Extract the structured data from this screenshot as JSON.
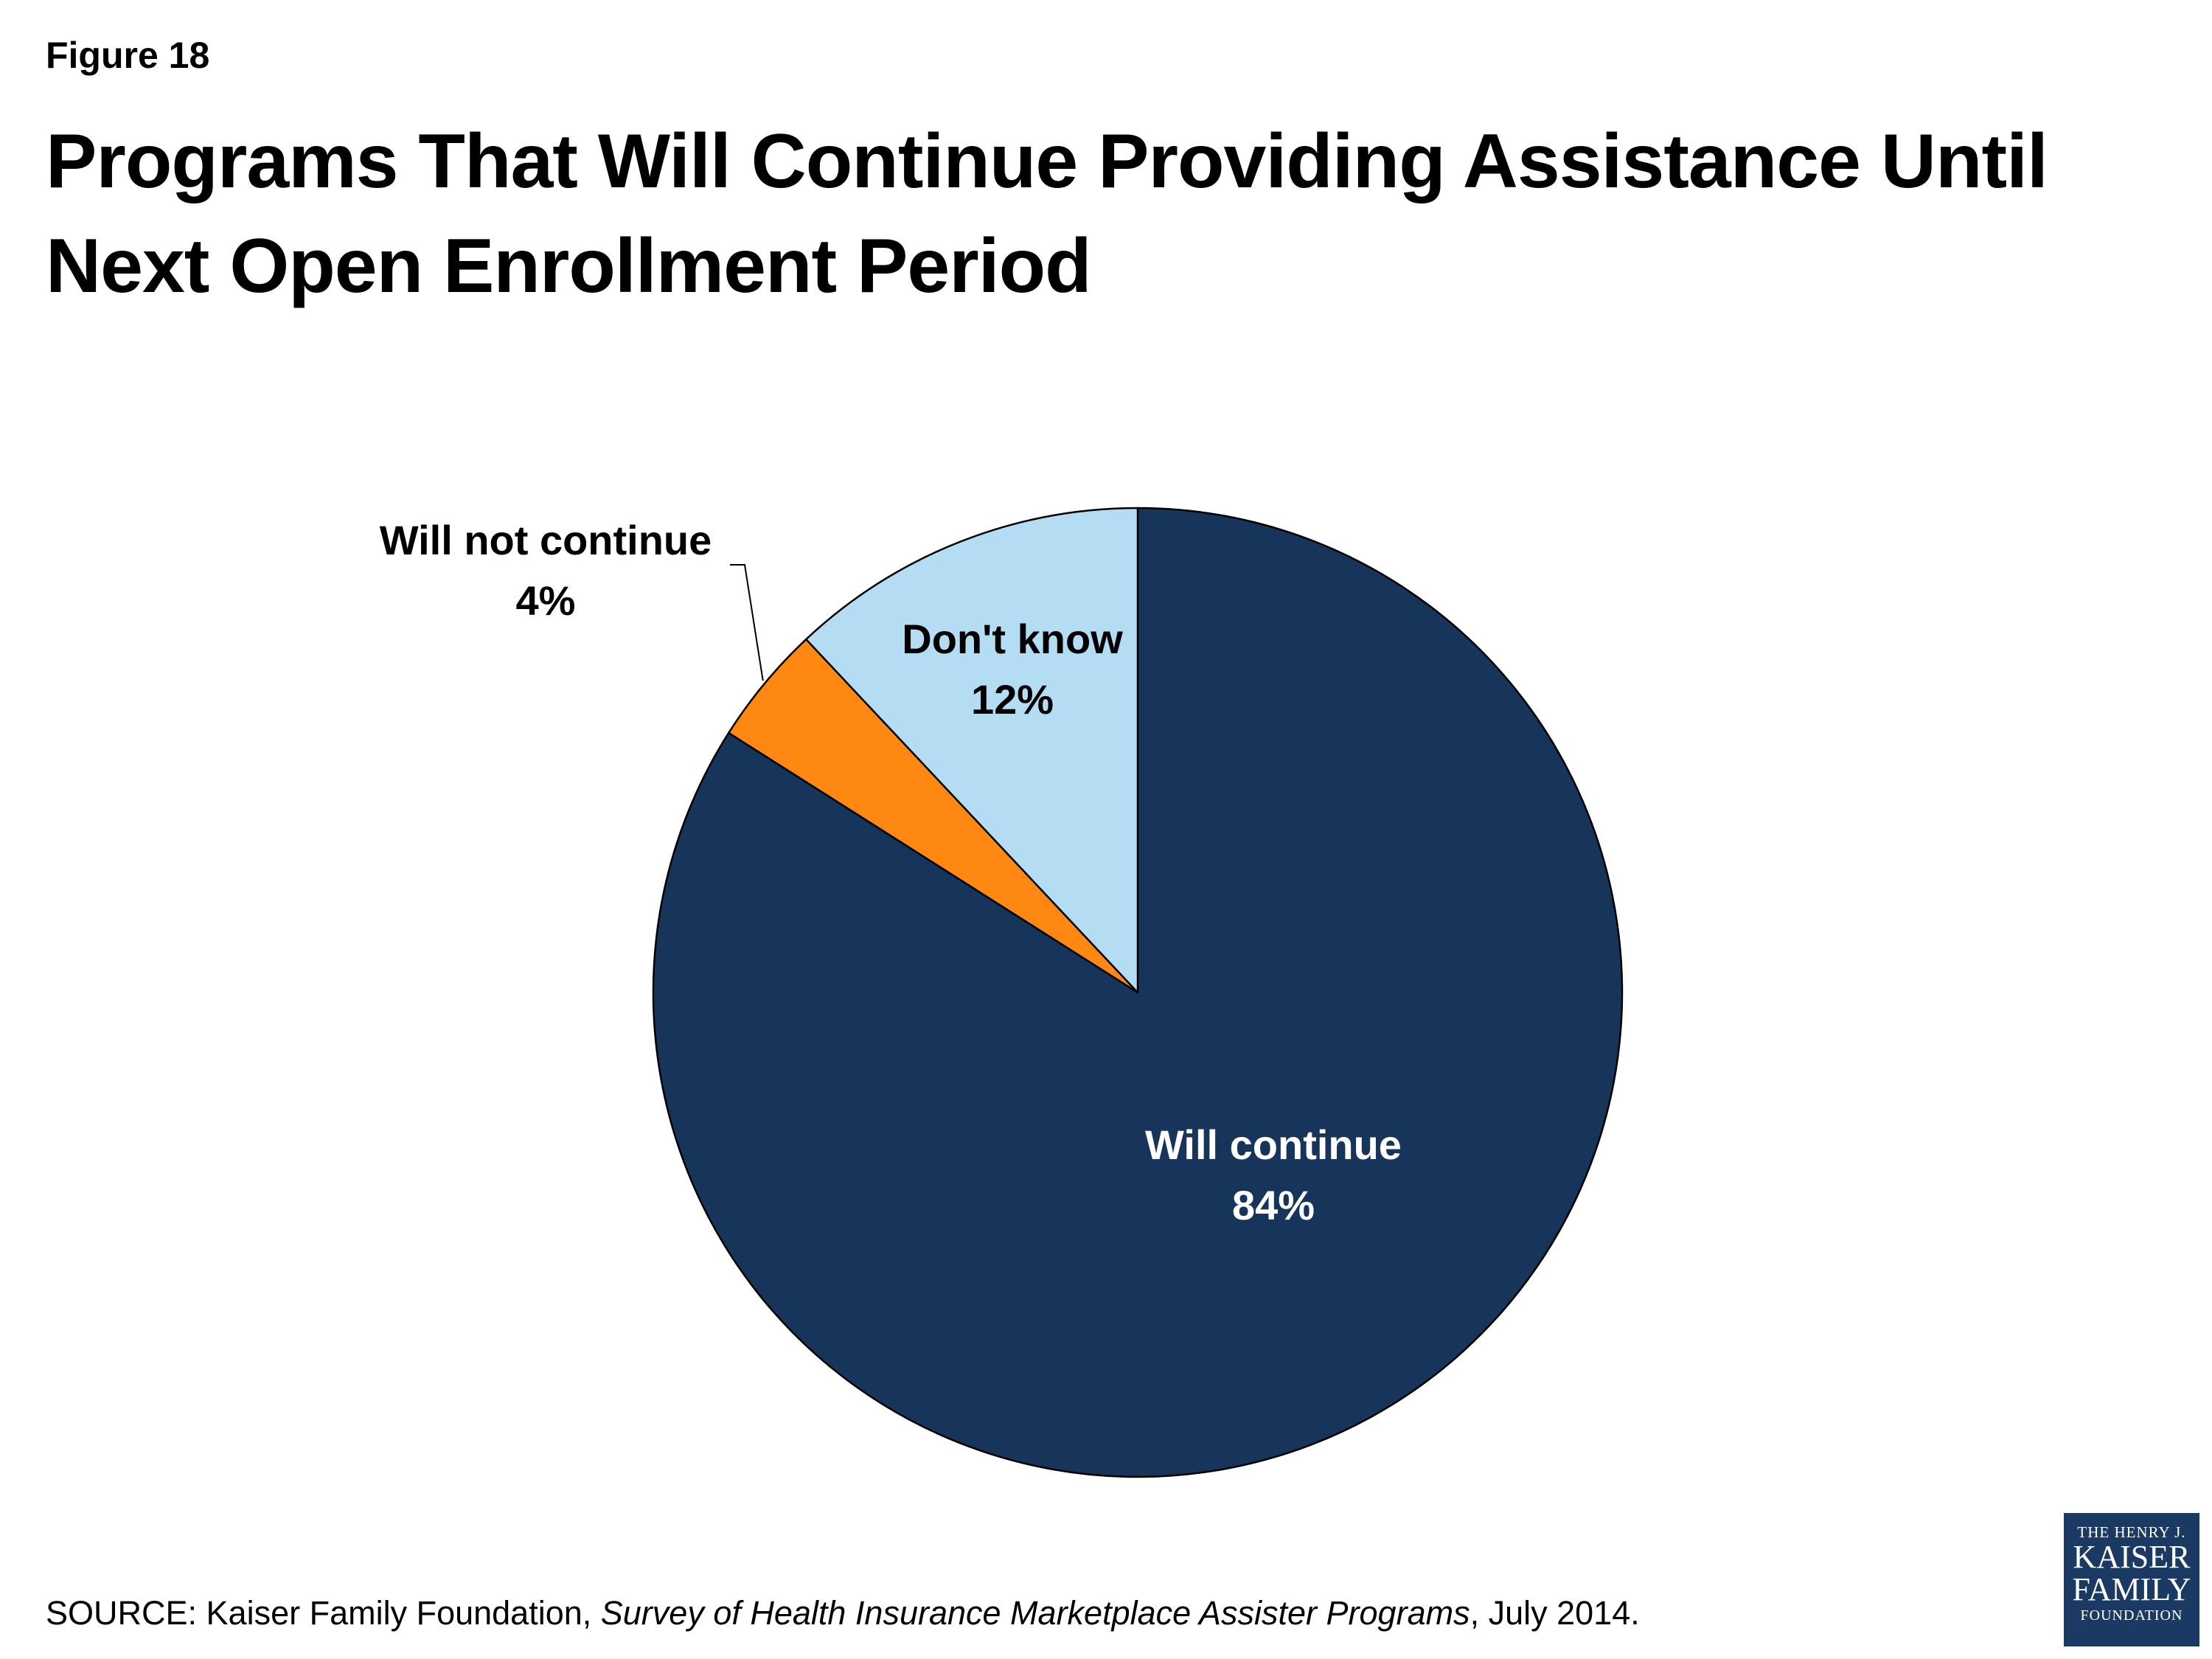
{
  "figure_label": "Figure 18",
  "title": "Programs That Will Continue Providing Assistance Until Next Open Enrollment Period",
  "chart_data": {
    "type": "pie",
    "start_angle": "12 o'clock",
    "direction": "clockwise",
    "slices": [
      {
        "label": "Will continue",
        "value": 84,
        "value_label": "84%",
        "color": "#17355a",
        "text_color": "#ffffff",
        "label_placement": "inside"
      },
      {
        "label": "Will not continue",
        "value": 4,
        "value_label": "4%",
        "color": "#ff8812",
        "text_color": "#000000",
        "label_placement": "outside-leader"
      },
      {
        "label": "Don't know",
        "value": 12,
        "value_label": "12%",
        "color": "#b4ddf3",
        "text_color": "#000000",
        "label_placement": "inside"
      }
    ]
  },
  "source": {
    "prefix": "SOURCE: Kaiser Family Foundation, ",
    "italic": "Survey of Health Insurance Marketplace Assister Programs",
    "suffix": ", July 2014."
  },
  "logo": {
    "line1": "THE HENRY J.",
    "line2": "KAISER",
    "line3": "FAMILY",
    "line4": "FOUNDATION",
    "color": "#1a3a63"
  }
}
